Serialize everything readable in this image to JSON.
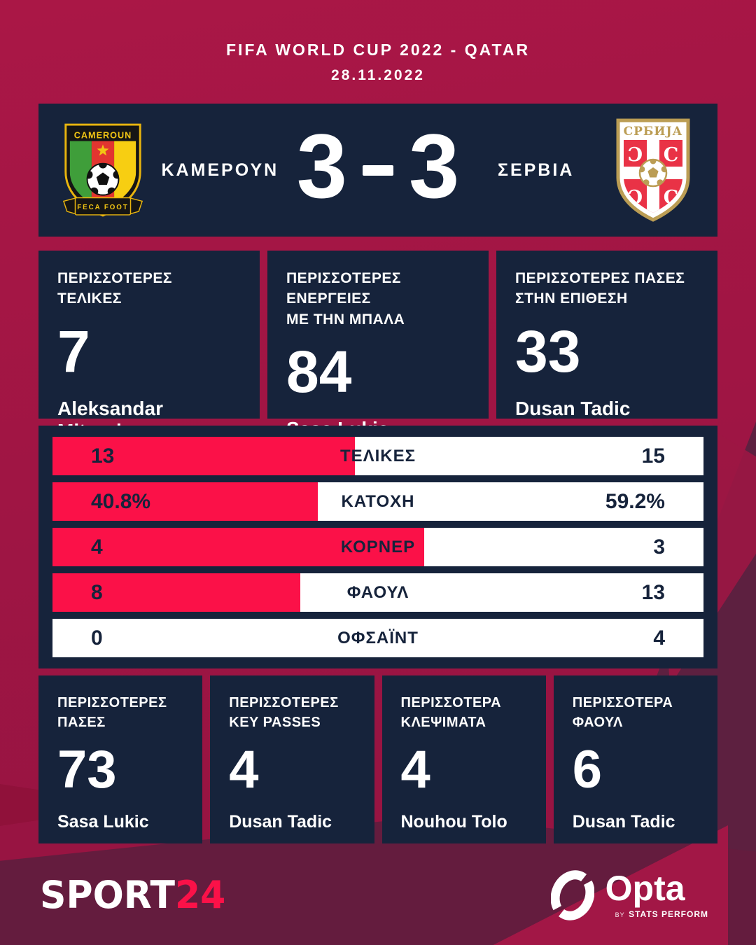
{
  "header": {
    "competition": "FIFA WORLD CUP 2022 - QATAR",
    "date": "28.11.2022"
  },
  "scoreboard": {
    "home": {
      "name": "ΚΑΜΕΡΟΥΝ",
      "badge_text": "CAMEROUN",
      "badge_ribbon": "FECA FOOT"
    },
    "away": {
      "name": "ΣΕΡΒΙΑ",
      "badge_text": "СРБИЈА"
    },
    "score_home": "3",
    "score_away": "3"
  },
  "top_highlights": [
    {
      "title_line1": "ΠΕΡΙΣΣΟΤΕΡΕΣ",
      "title_line2": "ΤΕΛΙΚΕΣ",
      "value": "7",
      "player": "Aleksandar Mitrovic"
    },
    {
      "title_line1": "ΠΕΡΙΣΣΟΤΕΡΕΣ ΕΝΕΡΓΕΙΕΣ",
      "title_line2": "ΜΕ ΤΗΝ ΜΠΑΛΑ",
      "value": "84",
      "player": "Sasa Lukic"
    },
    {
      "title_line1": "ΠΕΡΙΣΣΟΤΕΡΕΣ ΠΑΣΕΣ",
      "title_line2": "ΣΤΗΝ ΕΠΙΘΕΣΗ",
      "value": "33",
      "player": "Dusan Tadic"
    }
  ],
  "comparison": {
    "rows": [
      {
        "label": "ΤΕΛΙΚΕΣ",
        "home": "13",
        "away": "15",
        "home_fill_pct": 46.4
      },
      {
        "label": "ΚΑΤΟΧΗ",
        "home": "40.8%",
        "away": "59.2%",
        "home_fill_pct": 40.8
      },
      {
        "label": "ΚΟΡΝΕΡ",
        "home": "4",
        "away": "3",
        "home_fill_pct": 57.1
      },
      {
        "label": "ΦΑΟΥΛ",
        "home": "8",
        "away": "13",
        "home_fill_pct": 38.1
      },
      {
        "label": "ΟΦΣΑΪΝΤ",
        "home": "0",
        "away": "4",
        "home_fill_pct": 0
      }
    ]
  },
  "chart_data": {
    "type": "bar",
    "title": "ΚΑΜΕΡΟΥΝ 3 - 3 ΣΕΡΒΙΑ",
    "subtitle": "FIFA WORLD CUP 2022 - QATAR, 28.11.2022",
    "categories": [
      "ΤΕΛΙΚΕΣ",
      "ΚΑΤΟΧΗ (%)",
      "ΚΟΡΝΕΡ",
      "ΦΑΟΥΛ",
      "ΟΦΣΑΪΝΤ"
    ],
    "series": [
      {
        "name": "ΚΑΜΕΡΟΥΝ",
        "values": [
          13,
          40.8,
          4,
          8,
          0
        ]
      },
      {
        "name": "ΣΕΡΒΙΑ",
        "values": [
          15,
          59.2,
          3,
          13,
          4
        ]
      }
    ],
    "layout": "horizontal-opposed-bars",
    "legend_position": "none",
    "grid": false
  },
  "bottom_highlights": [
    {
      "title_line1": "ΠΕΡΙΣΣΟΤΕΡΕΣ",
      "title_line2": "ΠΑΣΕΣ",
      "value": "73",
      "player": "Sasa Lukic"
    },
    {
      "title_line1": "ΠΕΡΙΣΣΟΤΕΡΕΣ",
      "title_line2": "KEY PASSES",
      "value": "4",
      "player": "Dusan Tadic"
    },
    {
      "title_line1": "ΠΕΡΙΣΣΟΤΕΡΑ",
      "title_line2": "ΚΛΕΨΙΜΑΤΑ",
      "value": "4",
      "player": "Nouhou Tolo"
    },
    {
      "title_line1": "ΠΕΡΙΣΣΟΤΕΡΑ",
      "title_line2": "ΦΑΟΥΛ",
      "value": "6",
      "player": "Dusan Tadic"
    }
  ],
  "footer": {
    "sport24_part1": "SPORT",
    "sport24_part2": "24",
    "opta_name": "Opta",
    "opta_by": "BY",
    "opta_byline": "STATS PERFORM"
  },
  "colors": {
    "background_crimson": "#a21745",
    "background_dark_plum": "#5d2040",
    "panel_navy": "#16233b",
    "accent_red": "#fb1148",
    "white": "#ffffff",
    "serbia_gold": "#bb9d54",
    "serbia_red": "#e93246",
    "cameroon_yellow": "#f2c514",
    "cameroon_green": "#3f9e3a",
    "cameroon_red": "#e23530"
  }
}
